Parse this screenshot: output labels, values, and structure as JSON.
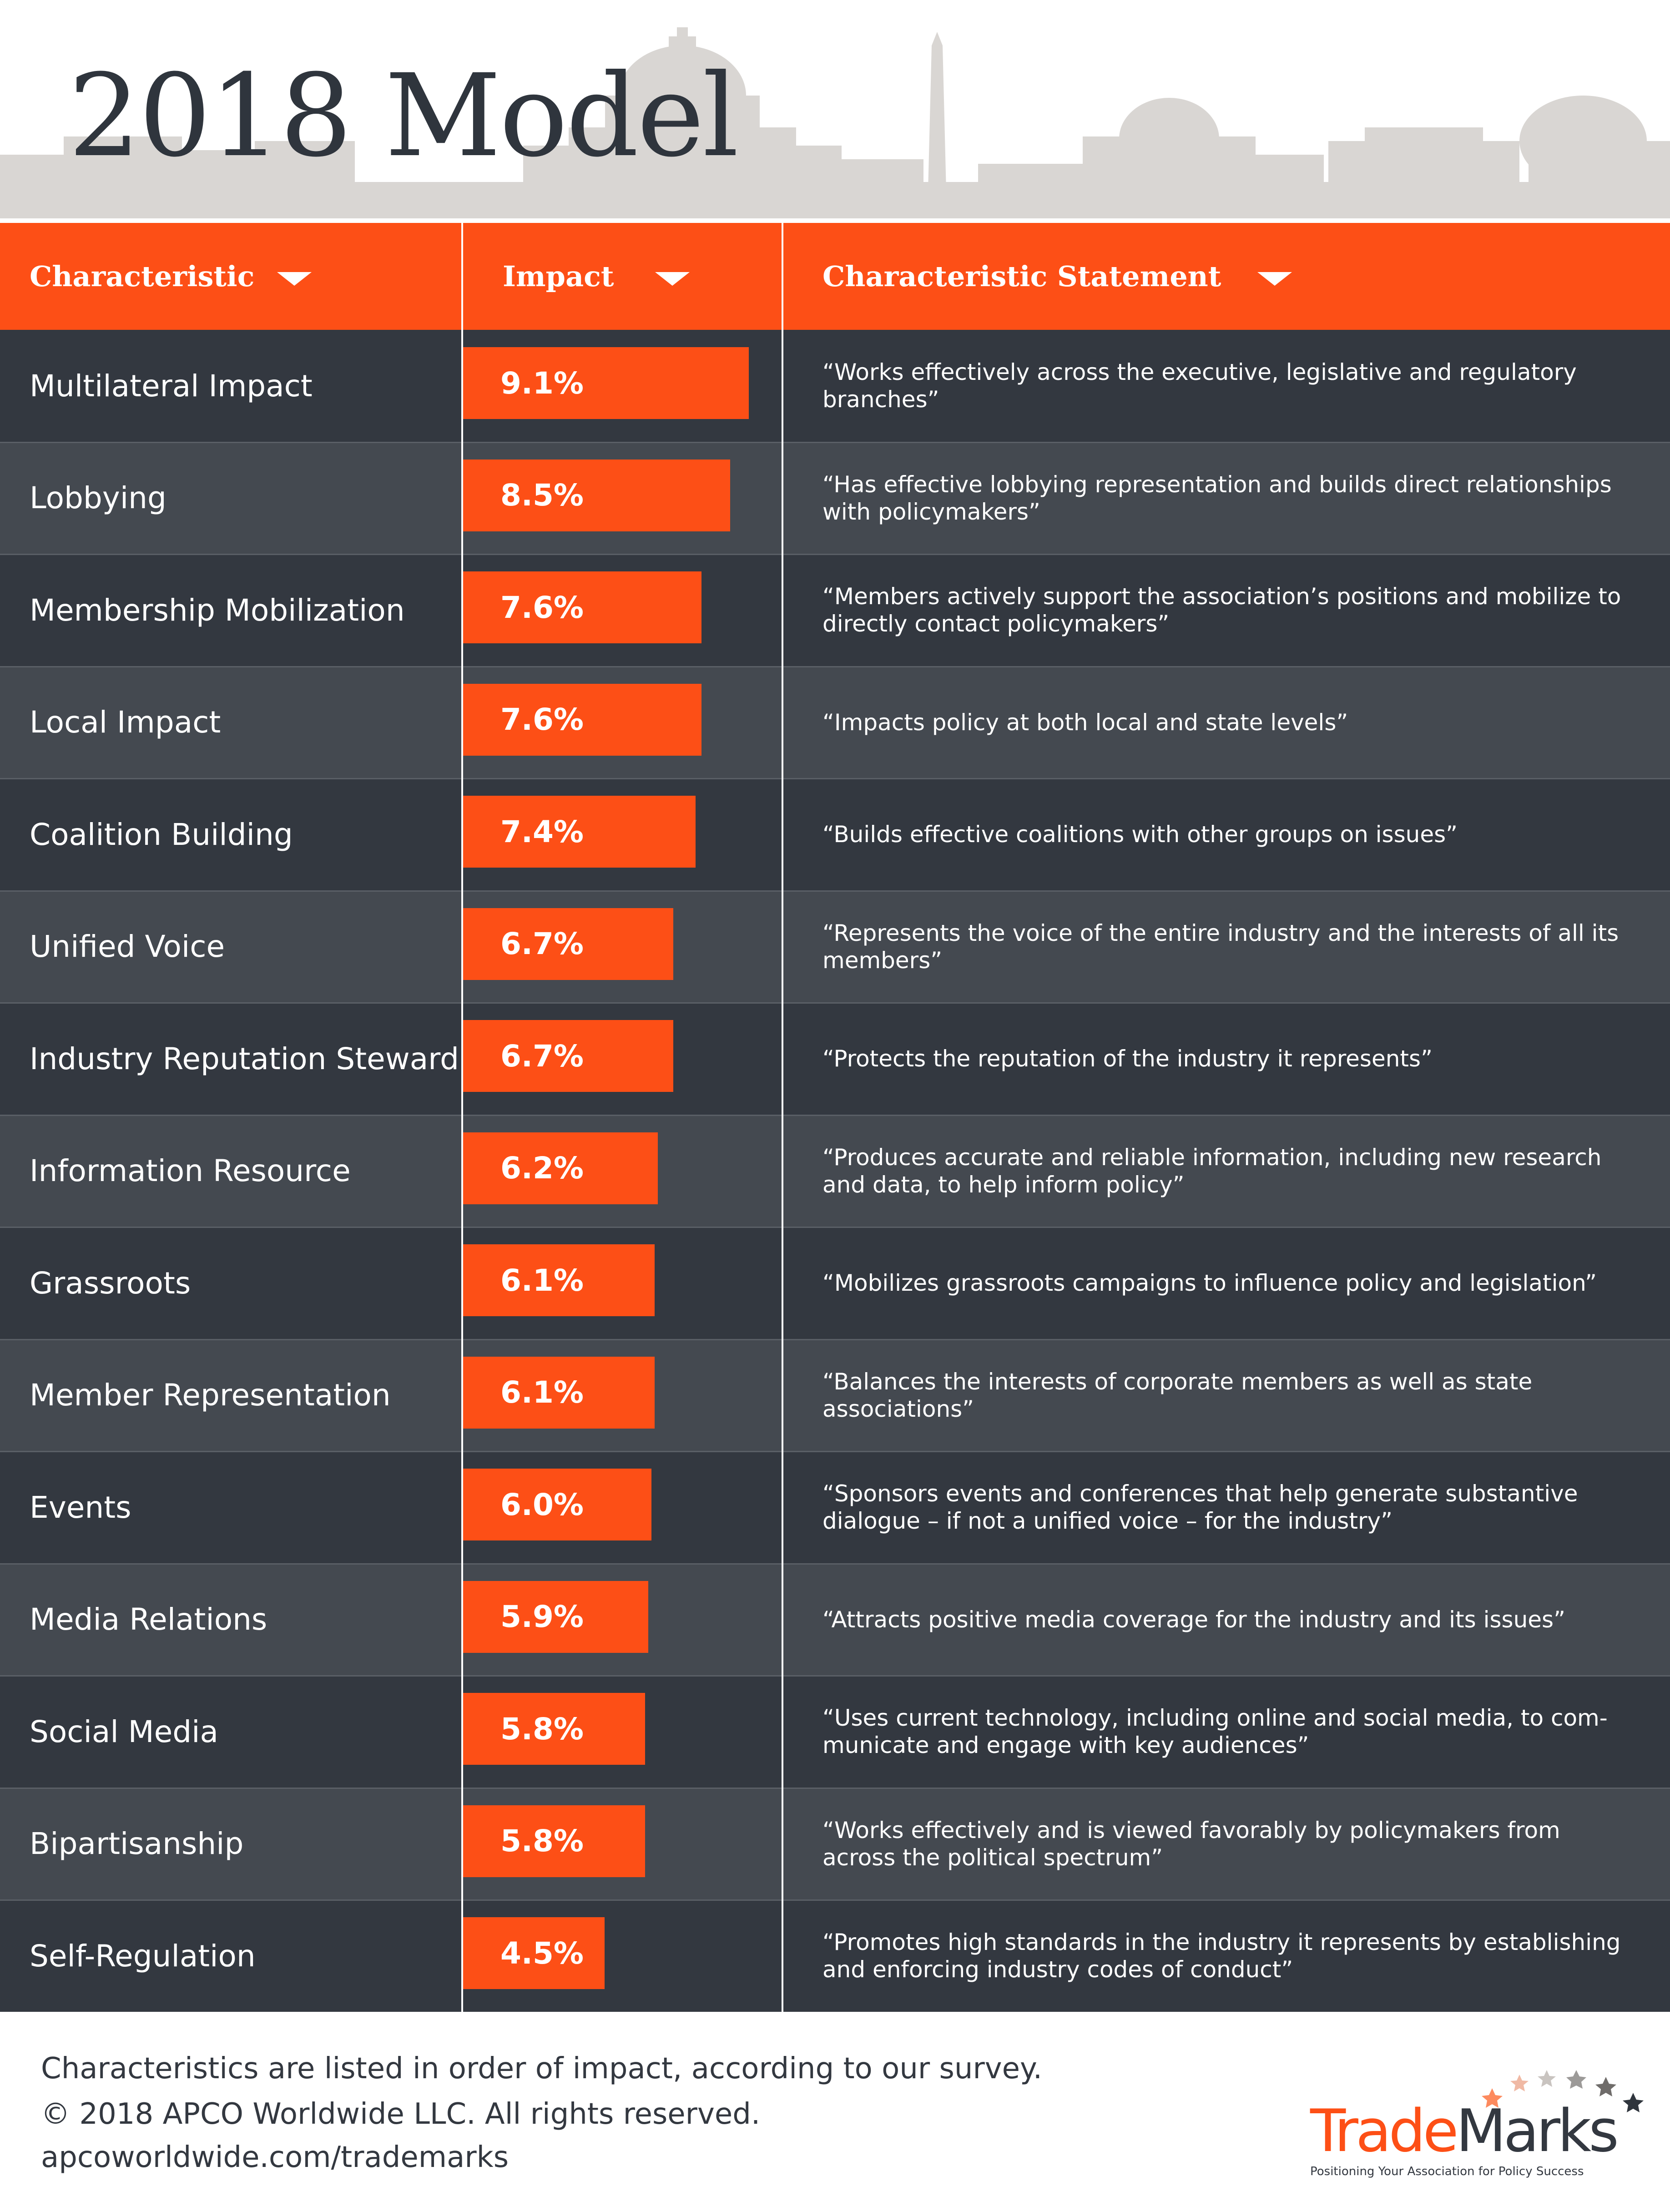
{
  "title": "2018 Model",
  "table_header": {
    "col1": "Characteristic",
    "col2": "Impact",
    "col3": "Characteristic Statement"
  },
  "chart_data": {
    "type": "bar",
    "categories": [
      "Multilateral Impact",
      "Lobbying",
      "Membership Mobilization",
      "Local Impact",
      "Coalition Building",
      "Unified Voice",
      "Industry Reputation Steward",
      "Information Resource",
      "Grassroots",
      "Member Representation",
      "Events",
      "Media Relations",
      "Social Media",
      "Bipartisanship",
      "Self-Regulation"
    ],
    "values": [
      9.1,
      8.5,
      7.6,
      7.6,
      7.4,
      6.7,
      6.7,
      6.2,
      6.1,
      6.1,
      6.0,
      5.9,
      5.8,
      5.8,
      4.5
    ],
    "value_labels": [
      "9.1%",
      "8.5%",
      "7.6%",
      "7.6%",
      "7.4%",
      "6.7%",
      "6.7%",
      "6.2%",
      "6.1%",
      "6.1%",
      "6.0%",
      "5.9%",
      "5.8%",
      "5.8%",
      "4.5%"
    ],
    "statements": [
      "“Works effectively across the executive, legislative and regulatory branches”",
      "“Has effective lobbying representation and builds direct relationships with policymakers”",
      "“Members actively support the association’s positions and mobilize to directly contact policymakers”",
      "“Impacts policy at both local and state levels”",
      "“Builds effective coalitions with other groups on issues”",
      "“Represents the voice of the entire industry and the interests of all its members”",
      "“Protects the reputation of the industry it represents”",
      "“Produces accurate and reliable information, including new research and data, to help inform policy”",
      "“Mobilizes grassroots campaigns to influence policy and legislation”",
      "“Balances the interests of corporate members as well as state associations”",
      "“Sponsors events and conferences that help generate  substantive dialogue – if not a unified voice – for the industry”",
      "“Attracts positive media coverage for the industry and its issues”",
      "“Uses current technology,  including online and social media, to com-municate and engage with key audiences”",
      "“Works effectively and is viewed favorably by policymakers from across the political spectrum”",
      "“Promotes high standards in the industry it represents by establishing and enforcing industry codes of conduct”"
    ],
    "xlim": [
      0,
      10
    ]
  },
  "footer": {
    "line1": "Characteristics are listed in order of impact, according to our survey.",
    "line2": "© 2018 APCO Worldwide LLC. All rights reserved.",
    "line3": "apcoworldwide.com/trademarks"
  },
  "logo": {
    "brand_a": "Trade",
    "brand_b": "Marks",
    "tagline": "Positioning Your Association for Policy Success"
  },
  "colors": {
    "accent": "#fd4f16",
    "row_dark": "#333840",
    "row_light": "#444950",
    "skyline": "#d9d6d3",
    "text_dark": "#333840"
  }
}
